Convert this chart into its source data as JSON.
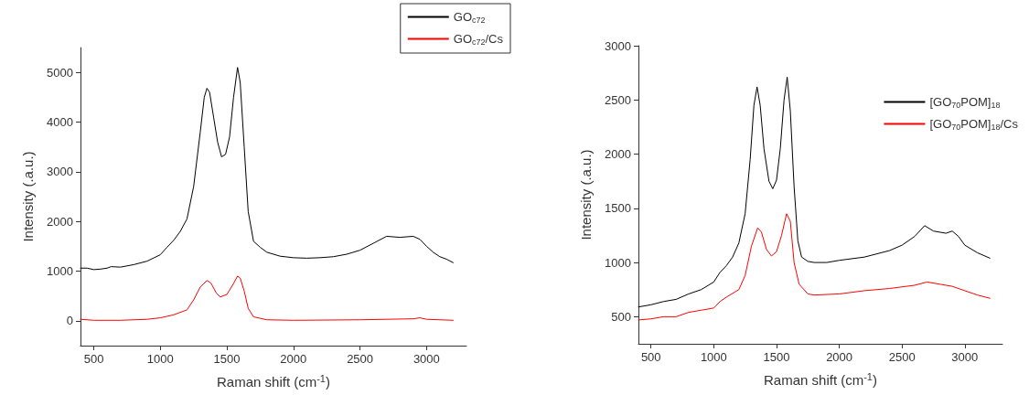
{
  "chart_data": [
    {
      "type": "line",
      "xlabel": "Raman shift (cm$^{-1}$)",
      "ylabel": "Intensity (.a.u.)",
      "xlim": [
        400,
        3300
      ],
      "xticks": [
        500,
        1000,
        1500,
        2000,
        2500,
        3000
      ],
      "ylim": [
        -500,
        5500
      ],
      "yticks": [
        0,
        1000,
        2000,
        3000,
        4000,
        5000
      ],
      "grid": false,
      "legend": "top right",
      "marker": "none",
      "line_style": "solid",
      "series": [
        {
          "name": "GO$_{c72}$",
          "color": "#000000",
          "x": [
            400,
            450,
            500,
            550,
            600,
            630,
            700,
            800,
            900,
            1000,
            1050,
            1100,
            1150,
            1200,
            1250,
            1300,
            1330,
            1350,
            1370,
            1400,
            1430,
            1460,
            1490,
            1520,
            1550,
            1580,
            1600,
            1630,
            1660,
            1700,
            1750,
            1800,
            1900,
            2000,
            2100,
            2200,
            2300,
            2400,
            2500,
            2600,
            2700,
            2800,
            2900,
            2950,
            3000,
            3050,
            3100,
            3150,
            3200
          ],
          "values": [
            1060,
            1060,
            1030,
            1040,
            1060,
            1090,
            1080,
            1130,
            1200,
            1330,
            1480,
            1620,
            1800,
            2050,
            2700,
            3800,
            4500,
            4680,
            4600,
            4100,
            3600,
            3300,
            3350,
            3700,
            4500,
            5100,
            4800,
            3500,
            2200,
            1600,
            1480,
            1380,
            1300,
            1270,
            1260,
            1270,
            1290,
            1340,
            1420,
            1560,
            1700,
            1680,
            1700,
            1640,
            1500,
            1380,
            1290,
            1240,
            1170
          ]
        },
        {
          "name": "GO$_{c72}$/Cs",
          "color": "#ff0000",
          "x": [
            400,
            500,
            700,
            900,
            1000,
            1100,
            1200,
            1250,
            1300,
            1350,
            1380,
            1420,
            1450,
            1500,
            1550,
            1580,
            1600,
            1630,
            1660,
            1700,
            1800,
            2000,
            2500,
            2900,
            2950,
            3000,
            3200
          ],
          "values": [
            30,
            10,
            10,
            30,
            60,
            120,
            220,
            420,
            680,
            810,
            760,
            560,
            480,
            530,
            750,
            900,
            860,
            600,
            250,
            80,
            20,
            10,
            20,
            40,
            60,
            30,
            10
          ]
        }
      ]
    },
    {
      "type": "line",
      "xlabel": "Raman shift (cm$^{-1}$)",
      "ylabel": "Intensity (.a.u.)",
      "xlim": [
        400,
        3300
      ],
      "xticks": [
        500,
        1000,
        1500,
        2000,
        2500,
        3000
      ],
      "ylim": [
        250,
        3000
      ],
      "yticks": [
        500,
        1000,
        1500,
        2000,
        2500,
        3000
      ],
      "grid": false,
      "legend": "right",
      "marker": "none",
      "line_style": "solid",
      "series": [
        {
          "name": "[GO$_{70}$POM]$_{18}$",
          "color": "#000000",
          "x": [
            400,
            500,
            600,
            700,
            800,
            900,
            1000,
            1050,
            1100,
            1150,
            1200,
            1250,
            1290,
            1320,
            1345,
            1370,
            1400,
            1440,
            1470,
            1500,
            1530,
            1560,
            1585,
            1610,
            1640,
            1670,
            1700,
            1750,
            1800,
            1900,
            2000,
            2200,
            2400,
            2500,
            2600,
            2680,
            2750,
            2850,
            2900,
            2950,
            3000,
            3100,
            3200
          ],
          "values": [
            590,
            610,
            640,
            660,
            710,
            750,
            820,
            910,
            970,
            1050,
            1180,
            1450,
            1950,
            2450,
            2620,
            2450,
            2050,
            1750,
            1680,
            1760,
            2050,
            2500,
            2710,
            2400,
            1700,
            1200,
            1050,
            1010,
            1000,
            1000,
            1020,
            1050,
            1110,
            1160,
            1240,
            1340,
            1290,
            1270,
            1290,
            1240,
            1160,
            1090,
            1040
          ]
        },
        {
          "name": "[GO$_{70}$POM]$_{18}$/Cs",
          "color": "#ff0000",
          "x": [
            400,
            500,
            600,
            700,
            800,
            900,
            1000,
            1050,
            1100,
            1200,
            1250,
            1300,
            1350,
            1380,
            1420,
            1460,
            1500,
            1540,
            1580,
            1610,
            1640,
            1680,
            1750,
            1800,
            2000,
            2200,
            2400,
            2600,
            2700,
            2800,
            2900,
            3000,
            3100,
            3200
          ],
          "values": [
            470,
            480,
            500,
            500,
            540,
            560,
            580,
            640,
            680,
            750,
            880,
            1150,
            1320,
            1280,
            1120,
            1060,
            1100,
            1250,
            1450,
            1380,
            1000,
            800,
            710,
            700,
            710,
            740,
            760,
            790,
            820,
            800,
            780,
            740,
            700,
            670
          ]
        }
      ]
    }
  ]
}
